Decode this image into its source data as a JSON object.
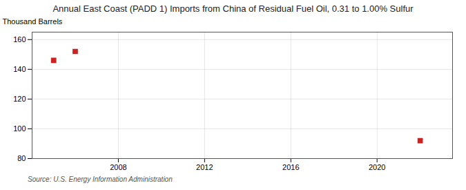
{
  "chart_data": {
    "type": "scatter",
    "title": "Annual East Coast (PADD 1) Imports from China of Residual Fuel Oil, 0.31 to 1.00% Sulfur",
    "ylabel": "Thousand Barrels",
    "source": "Source: U.S. Energy Information Administration",
    "x": [
      2005,
      2006,
      2022
    ],
    "values": [
      146,
      152,
      92
    ],
    "color": "#cc2222",
    "marker": "square",
    "xlim": [
      2004,
      2023.5
    ],
    "ylim": [
      80,
      165
    ],
    "xticks": [
      2008,
      2012,
      2016,
      2020
    ],
    "yticks": [
      80,
      100,
      120,
      140,
      160
    ],
    "grid": true
  }
}
